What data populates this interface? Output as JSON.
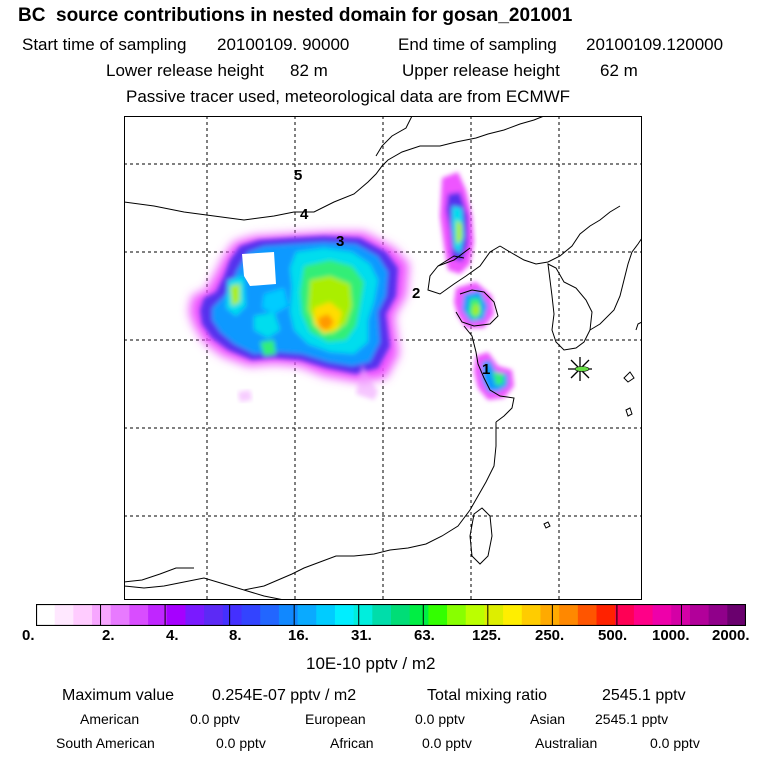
{
  "header": {
    "title": "BC  source contributions in nested domain for gosan_201001",
    "start_label": "Start time of sampling",
    "start_value": "20100109. 90000",
    "end_label": "End time of sampling",
    "end_value": "20100109.120000",
    "lower_label": "Lower release height",
    "lower_value": "82 m",
    "upper_label": "Upper release height",
    "upper_value": "62 m",
    "tracer_note": "Passive tracer used, meteorological data are from ECMWF"
  },
  "map": {
    "contour_labels": [
      "1",
      "2",
      "3",
      "4",
      "5"
    ],
    "receptor_marker": "asterisk-icon",
    "plume_colors": [
      "#ee00ff",
      "#5533ee",
      "#1199ff",
      "#00ddee",
      "#33ee77",
      "#aaee00",
      "#ffdd00",
      "#ff9900"
    ]
  },
  "colorbar": {
    "tick_labels": [
      "0.",
      "2.",
      "4.",
      "8.",
      "16.",
      "31.",
      "63.",
      "125.",
      "250.",
      "500.",
      "1000.",
      "2000."
    ],
    "colors": [
      "#ffffff",
      "#ffe8ff",
      "#ffccff",
      "#f7a6ff",
      "#e87aff",
      "#d94dff",
      "#c026ff",
      "#a600ff",
      "#7a1aff",
      "#5c2af5",
      "#4430ff",
      "#3344ff",
      "#2266ff",
      "#1188ff",
      "#0aaaff",
      "#00ccff",
      "#00eeff",
      "#00eedd",
      "#00ddaa",
      "#00dd77",
      "#00ee44",
      "#33ff00",
      "#88ff00",
      "#bbff00",
      "#ddee00",
      "#ffee00",
      "#ffcc00",
      "#ffaa00",
      "#ff8800",
      "#ff5500",
      "#ff2200",
      "#ff0055",
      "#ff0088",
      "#ee00aa",
      "#d400a6",
      "#b2009a",
      "#90008a",
      "#6a006e"
    ],
    "unit": "10E-10 pptv / m2"
  },
  "summary": {
    "max_label": "Maximum value",
    "max_value": "0.254E-07 pptv / m2",
    "total_label": "Total mixing ratio",
    "total_value": "2545.1 pptv",
    "regions": [
      {
        "name": "American",
        "value": "0.0 pptv"
      },
      {
        "name": "European",
        "value": "0.0 pptv"
      },
      {
        "name": "Asian",
        "value": "2545.1 pptv"
      },
      {
        "name": "South American",
        "value": "0.0 pptv"
      },
      {
        "name": "African",
        "value": "0.0 pptv"
      },
      {
        "name": "Australian",
        "value": "0.0 pptv"
      }
    ]
  }
}
